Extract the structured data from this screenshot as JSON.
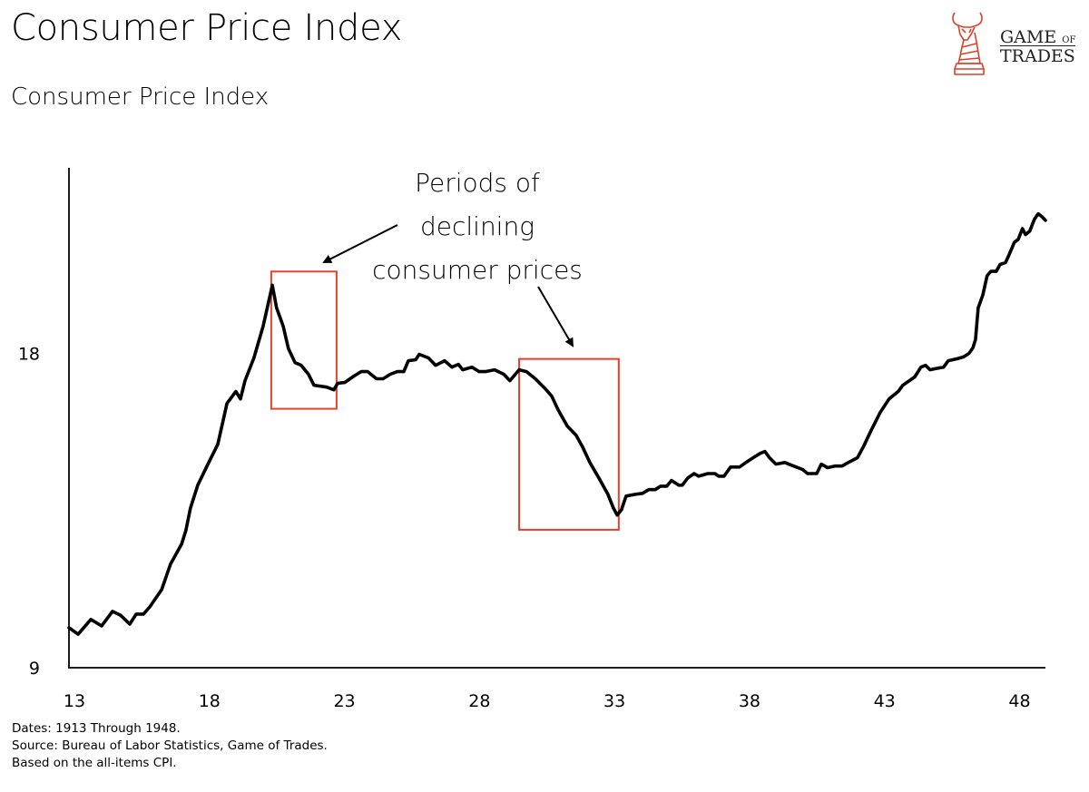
{
  "header": {
    "title": "Consumer Price Index",
    "logo": {
      "icon": "bull-chess-knight-icon",
      "line1": "GAME",
      "line1_small": "OF",
      "line2": "TRADES",
      "color": "#d9412b"
    }
  },
  "footnotes": [
    "Dates: 1913 Through 1948.",
    "Source: Bureau of Labor Statistics, Game of Trades.",
    "Based on the all-items CPI."
  ],
  "chart_data": {
    "type": "line",
    "title": "Consumer Price Index",
    "xlabel": "",
    "ylabel": "",
    "y_scale": "log",
    "xlim": [
      1913,
      1949.16
    ],
    "ylim": [
      9,
      27.1
    ],
    "grid": false,
    "legend": "none",
    "x_ticks": [
      {
        "value": 1913,
        "label": "13"
      },
      {
        "value": 1918,
        "label": "18"
      },
      {
        "value": 1923,
        "label": "23"
      },
      {
        "value": 1928,
        "label": "28"
      },
      {
        "value": 1933,
        "label": "33"
      },
      {
        "value": 1938,
        "label": "38"
      },
      {
        "value": 1943,
        "label": "43"
      },
      {
        "value": 1948,
        "label": "48"
      }
    ],
    "y_ticks": [
      {
        "value": 9,
        "label": "9"
      },
      {
        "value": 18,
        "label": "18"
      }
    ],
    "colors": {
      "line": "#000000",
      "highlight": "#e8412a"
    },
    "series": [
      {
        "name": "CPI",
        "x": [
          1913.0,
          1913.34,
          1913.81,
          1914.21,
          1914.61,
          1914.92,
          1915.25,
          1915.49,
          1915.76,
          1915.99,
          1916.43,
          1916.76,
          1917.17,
          1917.33,
          1917.5,
          1917.77,
          1918.11,
          1918.51,
          1918.85,
          1919.18,
          1919.35,
          1919.52,
          1919.85,
          1920.19,
          1920.53,
          1920.69,
          1920.93,
          1921.13,
          1921.37,
          1921.6,
          1921.87,
          1922.07,
          1922.54,
          1922.81,
          1922.95,
          1923.21,
          1923.55,
          1923.82,
          1924.06,
          1924.39,
          1924.63,
          1924.9,
          1925.16,
          1925.4,
          1925.57,
          1925.84,
          1925.97,
          1926.31,
          1926.58,
          1926.91,
          1927.18,
          1927.42,
          1927.58,
          1927.92,
          1928.19,
          1928.42,
          1928.76,
          1929.1,
          1929.33,
          1929.67,
          1929.94,
          1930.27,
          1930.61,
          1930.88,
          1931.11,
          1931.45,
          1931.78,
          1932.02,
          1932.29,
          1932.62,
          1932.96,
          1933.16,
          1933.3,
          1933.46,
          1933.63,
          1933.97,
          1934.24,
          1934.47,
          1934.71,
          1934.91,
          1935.14,
          1935.31,
          1935.58,
          1935.71,
          1935.92,
          1936.15,
          1936.32,
          1936.66,
          1936.92,
          1937.06,
          1937.26,
          1937.5,
          1937.83,
          1938.07,
          1938.34,
          1938.6,
          1938.77,
          1938.94,
          1939.18,
          1939.51,
          1939.75,
          1940.18,
          1940.35,
          1940.69,
          1940.86,
          1941.09,
          1941.36,
          1941.63,
          1941.86,
          1942.2,
          1942.43,
          1942.7,
          1943.04,
          1943.37,
          1943.71,
          1943.88,
          1944.12,
          1944.32,
          1944.55,
          1944.72,
          1944.89,
          1945.06,
          1945.39,
          1945.56,
          1945.73,
          1945.9,
          1946.13,
          1946.33,
          1946.47,
          1946.57,
          1946.67,
          1946.84,
          1947.0,
          1947.14,
          1947.34,
          1947.48,
          1947.68,
          1947.81,
          1948.01,
          1948.15,
          1948.31,
          1948.42,
          1948.58,
          1948.75,
          1948.89,
          1949.02,
          1949.16
        ],
        "values": [
          9.83,
          9.69,
          10.01,
          9.87,
          10.19,
          10.1,
          9.91,
          10.13,
          10.13,
          10.29,
          10.69,
          11.31,
          11.82,
          12.18,
          12.8,
          13.46,
          14.04,
          14.73,
          16.12,
          16.55,
          16.28,
          16.95,
          17.82,
          19.12,
          20.92,
          19.9,
          19.12,
          18.18,
          17.64,
          17.53,
          17.19,
          16.78,
          16.71,
          16.61,
          16.85,
          16.88,
          17.12,
          17.29,
          17.29,
          17.02,
          17.02,
          17.19,
          17.29,
          17.29,
          17.71,
          17.75,
          17.96,
          17.82,
          17.53,
          17.71,
          17.46,
          17.57,
          17.36,
          17.46,
          17.29,
          17.29,
          17.36,
          17.19,
          16.95,
          17.36,
          17.29,
          17.02,
          16.68,
          16.38,
          15.9,
          15.34,
          15.03,
          14.64,
          14.15,
          13.68,
          13.19,
          12.8,
          12.6,
          12.75,
          13.14,
          13.19,
          13.22,
          13.33,
          13.33,
          13.43,
          13.43,
          13.6,
          13.46,
          13.46,
          13.68,
          13.81,
          13.73,
          13.81,
          13.81,
          13.73,
          13.73,
          14.01,
          14.01,
          14.15,
          14.3,
          14.44,
          14.5,
          14.3,
          14.1,
          14.15,
          14.07,
          13.93,
          13.81,
          13.81,
          14.1,
          13.99,
          14.04,
          14.04,
          14.15,
          14.3,
          14.67,
          15.18,
          15.8,
          16.28,
          16.55,
          16.78,
          16.95,
          17.09,
          17.46,
          17.53,
          17.36,
          17.4,
          17.46,
          17.71,
          17.75,
          17.79,
          17.86,
          18.0,
          18.22,
          18.55,
          19.9,
          20.47,
          21.36,
          21.57,
          21.57,
          21.9,
          21.99,
          22.36,
          23.0,
          23.14,
          23.7,
          23.39,
          23.57,
          24.19,
          24.49,
          24.35,
          24.14
        ]
      }
    ],
    "highlight_boxes": [
      {
        "name": "deflation-1920-1922",
        "x0": 1920.49,
        "x1": 1922.91,
        "y0": 15.93,
        "y1": 21.56
      },
      {
        "name": "deflation-1929-1933",
        "x0": 1929.67,
        "x1": 1933.36,
        "y0": 12.2,
        "y1": 17.78
      }
    ],
    "annotations": {
      "lines": [
        "Periods of",
        "declining",
        "consumer prices"
      ]
    }
  }
}
